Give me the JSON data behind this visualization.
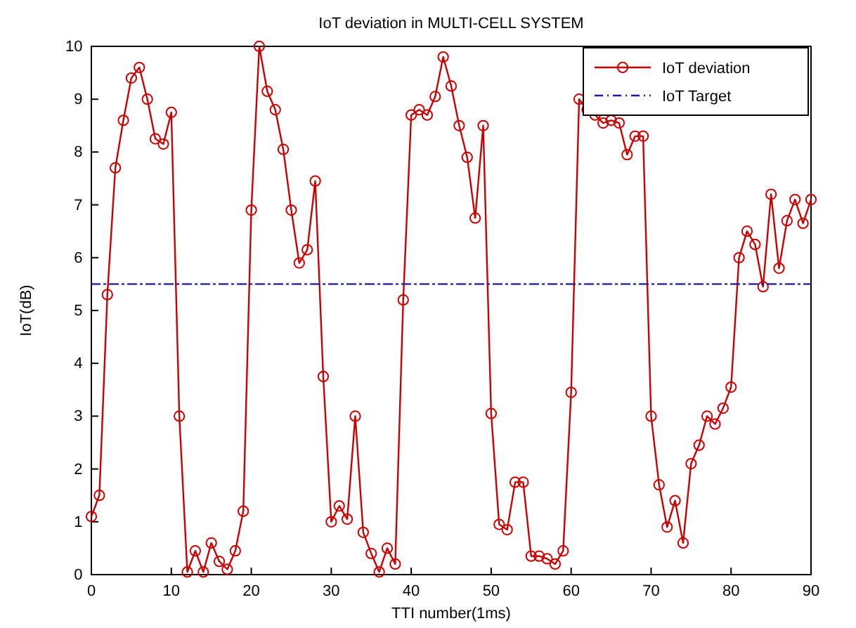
{
  "chart_data": {
    "type": "line",
    "title": "IoT deviation in MULTI-CELL SYSTEM",
    "xlabel": "TTI number(1ms)",
    "ylabel": "IoT(dB)",
    "x": [
      0,
      1,
      2,
      3,
      4,
      5,
      6,
      7,
      8,
      9,
      10,
      11,
      12,
      13,
      14,
      15,
      16,
      17,
      18,
      19,
      20,
      21,
      22,
      23,
      24,
      25,
      26,
      27,
      28,
      29,
      30,
      31,
      32,
      33,
      34,
      35,
      36,
      37,
      38,
      39,
      40,
      41,
      42,
      43,
      44,
      45,
      46,
      47,
      48,
      49,
      50,
      51,
      52,
      53,
      54,
      55,
      56,
      57,
      58,
      59,
      60,
      61,
      62,
      63,
      64,
      65,
      66,
      67,
      68,
      69,
      70,
      71,
      72,
      73,
      74,
      75,
      76,
      77,
      78,
      79,
      80,
      81,
      82,
      83,
      84,
      85,
      86,
      87,
      88,
      89,
      90
    ],
    "series": [
      {
        "name": "IoT deviation",
        "color": "#cc0000",
        "marker": "circle",
        "line_style": "solid",
        "values": [
          1.1,
          1.5,
          5.3,
          7.7,
          8.6,
          9.4,
          9.6,
          9.0,
          8.25,
          8.15,
          8.75,
          3.0,
          0.05,
          0.45,
          0.05,
          0.6,
          0.25,
          0.1,
          0.45,
          1.2,
          6.9,
          10.0,
          9.15,
          8.8,
          8.05,
          6.9,
          5.9,
          6.15,
          7.45,
          3.75,
          1.0,
          1.3,
          1.05,
          3.0,
          0.8,
          0.4,
          0.05,
          0.5,
          0.2,
          5.2,
          8.7,
          8.8,
          8.7,
          9.05,
          9.8,
          9.25,
          8.5,
          7.9,
          6.75,
          8.5,
          3.05,
          0.95,
          0.85,
          1.75,
          1.75,
          0.35,
          0.35,
          0.3,
          0.2,
          0.45,
          3.45,
          9.0,
          8.8,
          8.7,
          8.55,
          8.6,
          8.55,
          7.95,
          8.3,
          8.3,
          3.0,
          1.7,
          0.9,
          1.4,
          0.6,
          2.1,
          2.45,
          3.0,
          2.85,
          3.15,
          3.55,
          6.0,
          6.5,
          6.25,
          5.45,
          7.2,
          5.8,
          6.7,
          7.1,
          6.65,
          7.1
        ]
      },
      {
        "name": "IoT Target",
        "type": "line",
        "color": "#1a1aa0",
        "marker": "none",
        "line_style": "dashed",
        "x": [
          0,
          90
        ],
        "values": [
          5.5,
          5.5
        ]
      }
    ],
    "xlim": [
      0,
      90
    ],
    "xticks": [
      0,
      10,
      20,
      30,
      40,
      50,
      60,
      70,
      80,
      90
    ],
    "ylim": [
      0,
      10
    ],
    "yticks": [
      0,
      1,
      2,
      3,
      4,
      5,
      6,
      7,
      8,
      9,
      10
    ],
    "grid": false,
    "legend": "top right"
  }
}
